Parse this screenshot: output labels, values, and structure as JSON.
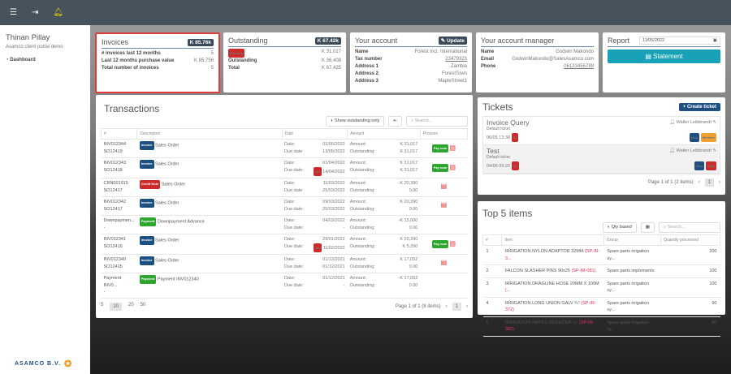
{
  "topbar": {
    "icons": [
      "menu-icon",
      "logout-icon",
      "bell-icon"
    ]
  },
  "sidebar": {
    "user": "Thinan Pillay",
    "subtitle": "Asamco client portal demo",
    "items": [
      {
        "label": "Dashboard",
        "icon": "dashboard-icon"
      }
    ],
    "logo_text": "ASAMCO B.V."
  },
  "invoices": {
    "title": "Invoices",
    "total": "K 85.76k",
    "rows": [
      {
        "label": "# invoices last 12 months",
        "value": "5"
      },
      {
        "label": "Last 12 months purchase value",
        "value": "K 85,756"
      },
      {
        "label": "Total number of invoices",
        "value": "5"
      }
    ]
  },
  "outstanding": {
    "title": "Outstanding",
    "total": "K 67.42k",
    "overdue_badge": "Overdue",
    "overdue_value": "K 31,017",
    "rows": [
      {
        "label": "Outstanding",
        "value": "K 36,408"
      },
      {
        "label": "Total",
        "value": "K 67,425"
      }
    ]
  },
  "account": {
    "title": "Your account",
    "update_label": "Update",
    "rows": [
      {
        "label": "Name",
        "value": "Forest Incl. International"
      },
      {
        "label": "Tax number",
        "value": "23479323"
      },
      {
        "label": "Address 1",
        "value": "Zambia"
      },
      {
        "label": "Address 2",
        "value": "ForestTown"
      },
      {
        "label": "Address 3",
        "value": "MapleStreet1"
      }
    ]
  },
  "manager": {
    "title": "Your account manager",
    "rows": [
      {
        "label": "Name",
        "value": "Godwin Makondo"
      },
      {
        "label": "Email",
        "value": "GodwinMakondo@SalesAsamco.com"
      },
      {
        "label": "Phone",
        "value": "06123456789"
      }
    ]
  },
  "report": {
    "title": "Report",
    "date": "11/05/2022",
    "statement_label": "Statement"
  },
  "transactions": {
    "title": "Transactions",
    "toggle_label": "Show outstanding only",
    "search_placeholder": "Search...",
    "columns": [
      "#",
      "Description",
      "Date",
      "Amount",
      "Process"
    ],
    "date_label": "Date:",
    "due_label": "Due date:",
    "amount_label": "Amount:",
    "outstanding_label": "Outstanding:",
    "pay_label": "Pay now",
    "rows": [
      {
        "id": "INV012344",
        "so": "SO12419",
        "type": "Invoice",
        "color": "blue",
        "desc": "Sales Order",
        "date": "01/05/2022",
        "due": "13/05/2022",
        "late": "",
        "amount": "K 31,017",
        "outstanding": "K 31,017",
        "out_green": true,
        "pay": true,
        "pdf": true
      },
      {
        "id": "INV012343",
        "so": "SO12418",
        "type": "Invoice",
        "color": "blue",
        "desc": "Sales Order",
        "date": "01/04/2022",
        "due": "14/04/2022",
        "late": "4w",
        "amount": "K 31,017",
        "outstanding": "K 31,017",
        "out_green": false,
        "pay": true,
        "pdf": true
      },
      {
        "id": "CRN001915",
        "so": "SO12417",
        "type": "Credit Note",
        "color": "red",
        "desc": "Sales Order",
        "date": "11/03/2022",
        "due": "25/03/2022",
        "late": "",
        "amount": "-K 20,390",
        "outstanding": "0.00",
        "out_green": true,
        "pay": false,
        "pdf": true
      },
      {
        "id": "INV012342",
        "so": "SO12417",
        "type": "Invoice",
        "color": "blue",
        "desc": "Sales Order",
        "date": "09/03/2022",
        "due": "25/03/2022",
        "late": "",
        "amount": "K 20,390",
        "outstanding": "0.00",
        "out_green": true,
        "pay": false,
        "pdf": true
      },
      {
        "id": "Downpaymen...",
        "so": "-",
        "type": "Payment",
        "color": "green",
        "desc": "Downpayment Advance",
        "date": "04/03/2022",
        "due": "-",
        "late": "",
        "amount": "-K 15,000",
        "outstanding": "0.00",
        "out_green": true,
        "pay": false,
        "pdf": false
      },
      {
        "id": "INV012341",
        "so": "SO12416",
        "type": "Invoice",
        "color": "blue",
        "desc": "Sales Order",
        "date": "29/01/2022",
        "due": "11/02/2022",
        "late": "3m",
        "amount": "K 20,390",
        "outstanding": "K 5,390",
        "out_green": false,
        "pay": true,
        "pdf": true
      },
      {
        "id": "INV012340",
        "so": "SO12415",
        "type": "Invoice",
        "color": "blue",
        "desc": "Sales Order",
        "date": "01/12/2021",
        "due": "01/12/2021",
        "late": "",
        "amount": "K 17,052",
        "outstanding": "0.00",
        "out_green": true,
        "pay": false,
        "pdf": true
      },
      {
        "id": "Payment INV0...",
        "so": "-",
        "type": "Payment",
        "color": "green",
        "desc": "Payment INV012340",
        "date": "01/12/2021",
        "due": "-",
        "late": "",
        "amount": "-K 17,052",
        "outstanding": "0.00",
        "out_green": true,
        "pay": false,
        "pdf": false
      }
    ],
    "page_sizes": [
      "5",
      "10",
      "20",
      "50"
    ],
    "active_size": "10",
    "page_info": "Page 1 of 1 (8 items)",
    "page": "1"
  },
  "tickets": {
    "title": "Tickets",
    "create_label": "+ Create ticket",
    "items": [
      {
        "title": "Invoice Query",
        "sub": "Default ticket",
        "when": "06/05 13:38",
        "age": "5d",
        "user": "Walter Leibbrandt",
        "status": "New",
        "priority": "Medium",
        "pcolor": "orange"
      },
      {
        "title": "Test",
        "sub": "Default ticket",
        "when": "04/05 09:20",
        "age": "1w",
        "user": "Walter Leibbrandt",
        "status": "New",
        "priority": "High",
        "pcolor": "red"
      }
    ],
    "page_info": "Page 1 of 1 (2 items)",
    "page": "1"
  },
  "top5": {
    "title": "Top 5 items",
    "toggle_label": "Qty based",
    "search_placeholder": "Search...",
    "columns": [
      "#",
      "Item",
      "Group",
      "Quantity processed"
    ],
    "rows": [
      {
        "n": "1",
        "item": "IRRIGATION NYLON ADAPTOR 32MM",
        "code": "(SP-IR-3...",
        "group": "Spare parts Irrigation sy...",
        "qty": "200"
      },
      {
        "n": "2",
        "item": "FALCON SLASHER PINS 90x25",
        "code": "(SP-IM-081)",
        "group": "Spare parts implements",
        "qty": "100"
      },
      {
        "n": "3",
        "item": "IRRIGATION DRAGLINE HOSE 20MM X 100M",
        "code": "(...",
        "group": "Spare parts Irrigation sy...",
        "qty": "100"
      },
      {
        "n": "4",
        "item": "IRRIGATION LONG UNION GALV ¾\"",
        "code": "(SP-IR-372)",
        "group": "Spare parts Irrigation sy...",
        "qty": "90"
      },
      {
        "n": "5",
        "item": "IRRIGATION NIPPLE REDUCER ½\"",
        "code": "(SP-IR-382)",
        "group": "Spare parts Irrigation sy...",
        "qty": "90"
      }
    ]
  }
}
